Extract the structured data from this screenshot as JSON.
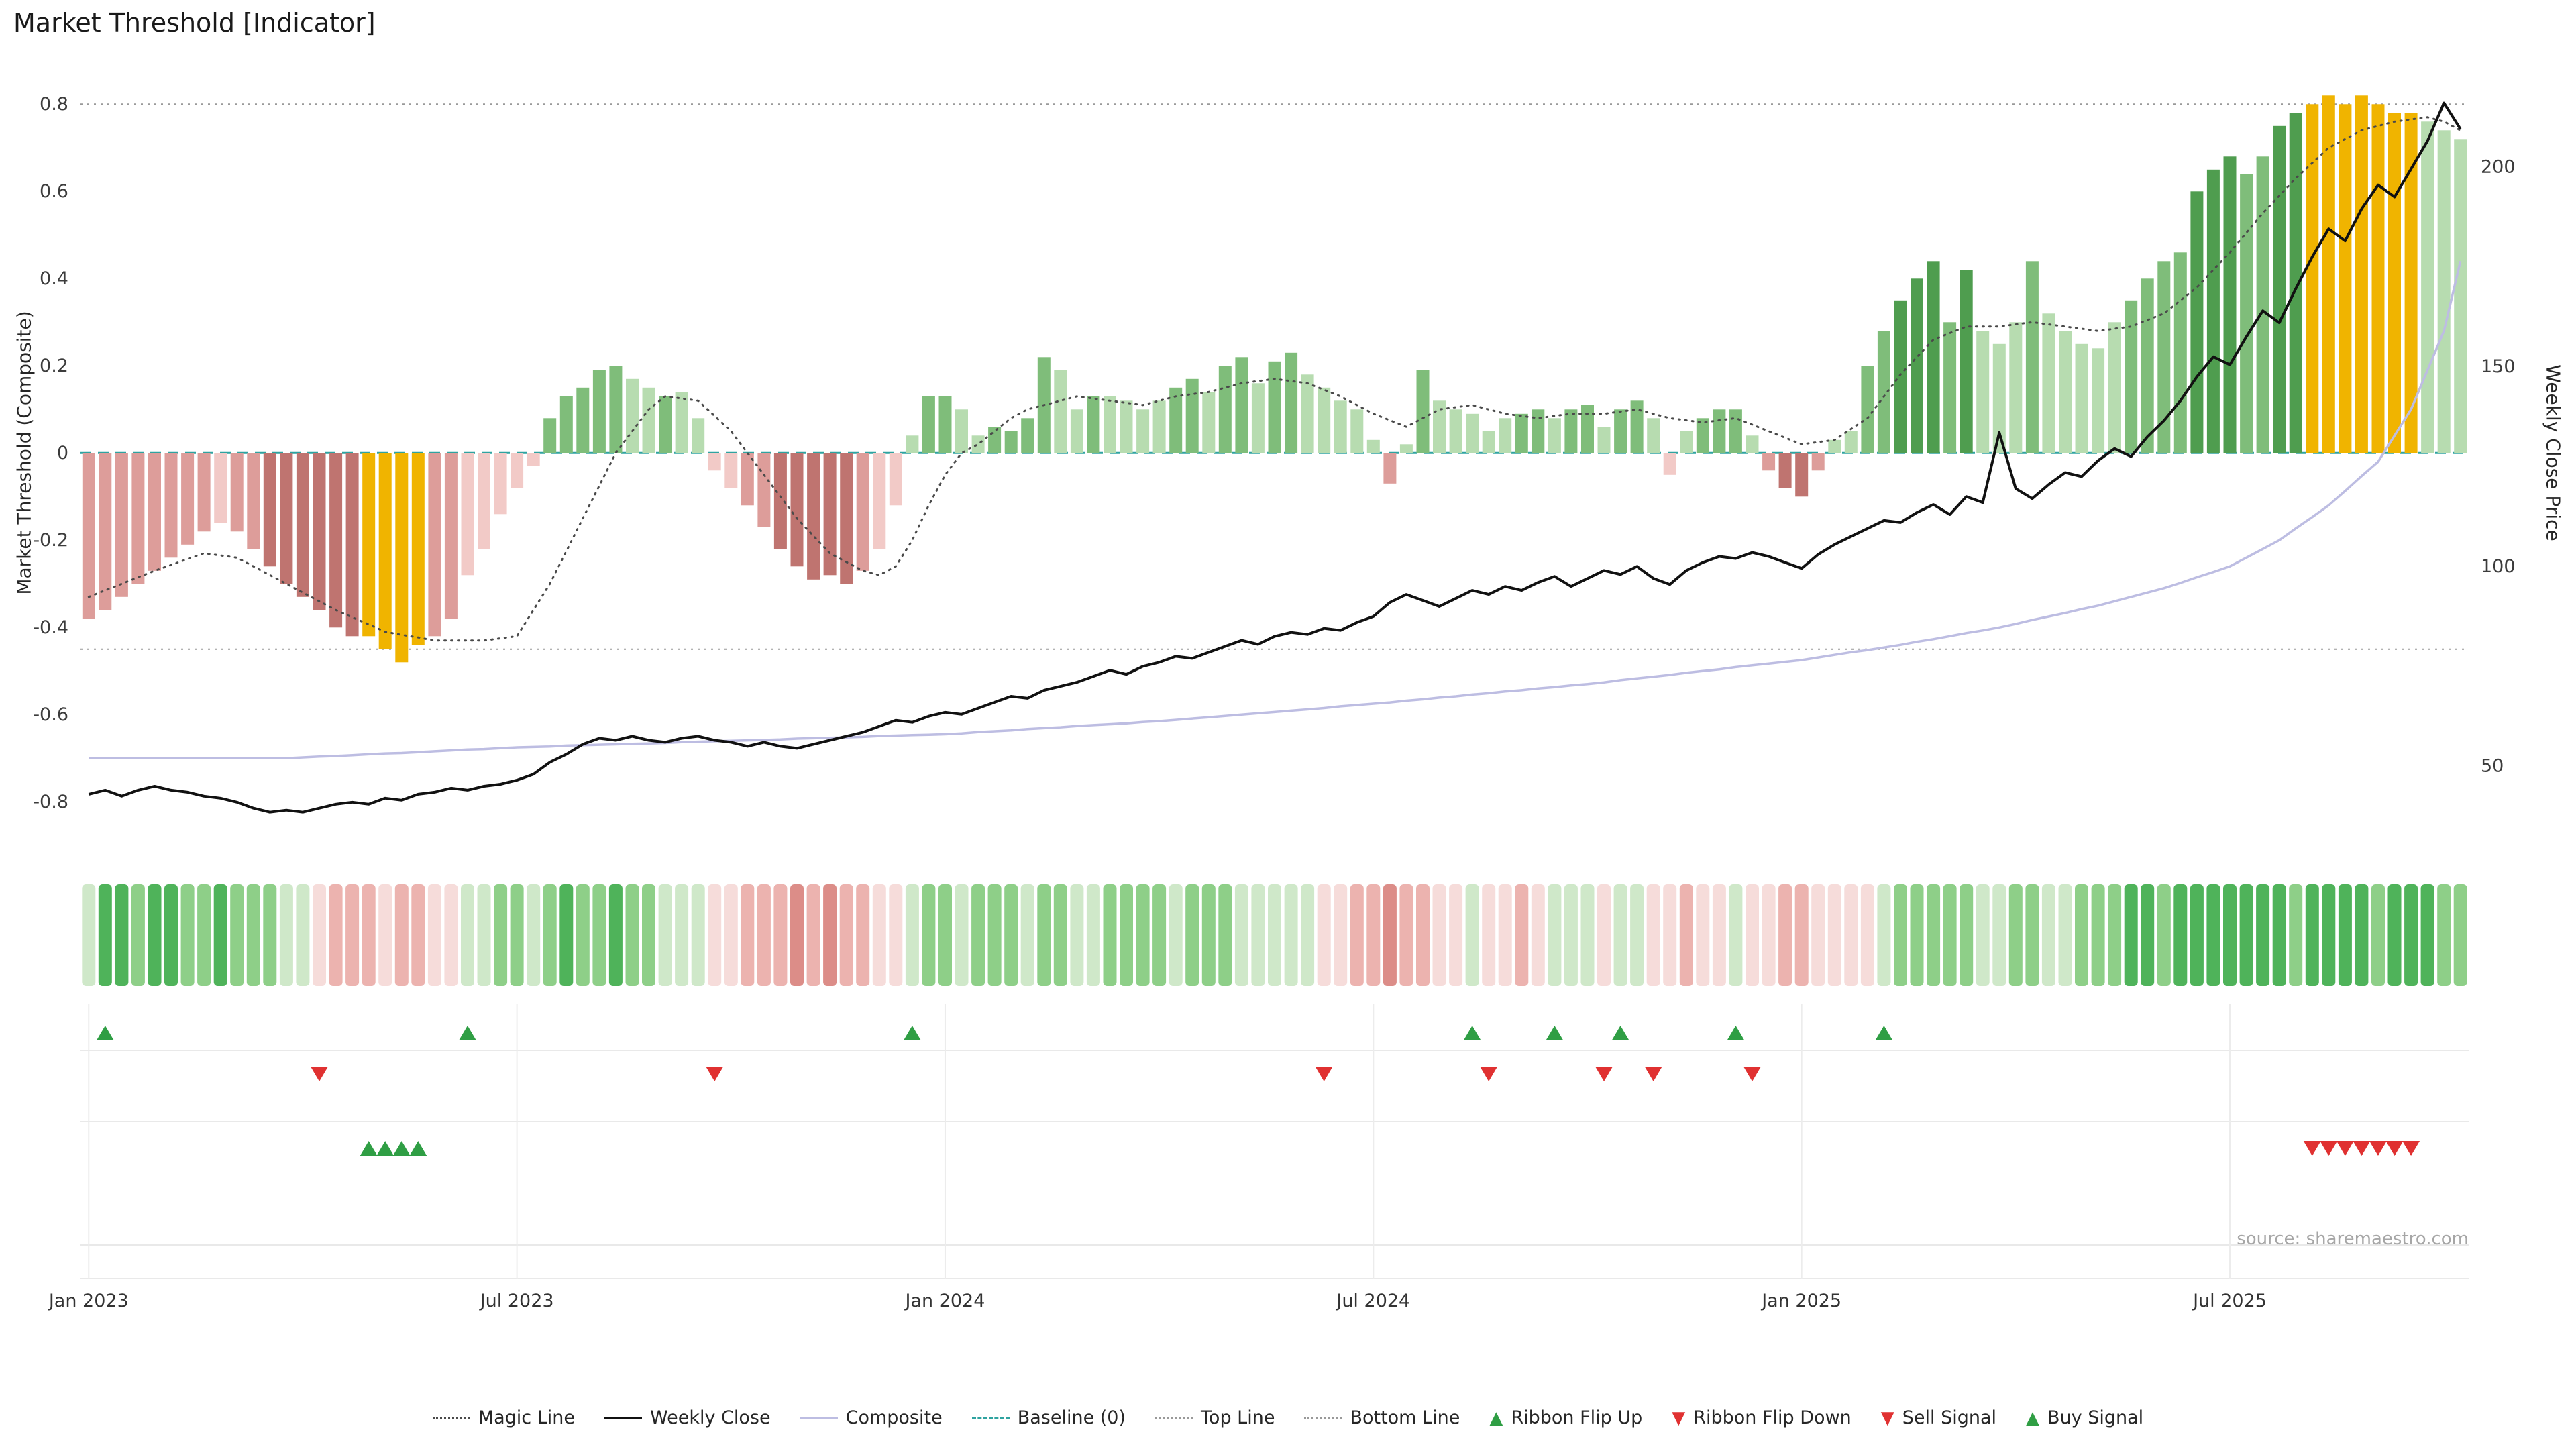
{
  "title": "Market Threshold [Indicator]",
  "source": "source: sharemaestro.com",
  "colors": {
    "weekly_close": "#111111",
    "composite_line": "#bdbde2",
    "magic_line": "#4a4a4a",
    "baseline": "#2fa3a0",
    "guide": "#999999",
    "flip_up": "#2f9e44",
    "flip_down": "#e03131",
    "buy": "#2f9e44",
    "sell": "#e03131",
    "grid": "#ececec",
    "tick_text": "#3c3c3c",
    "bar_palette": {
      "g1": "#b7dcb0",
      "g2": "#7fbd7a",
      "g3": "#4f9d4f",
      "r1": "#f2cac7",
      "r2": "#dd9d9a",
      "r3": "#bf7470",
      "gold": "#f0b400"
    },
    "ribbon_palette": {
      "1": "#cfe8c9",
      "2": "#8ecf88",
      "3": "#4fb35a",
      "-1": "#f6dcda",
      "-2": "#ecb3af",
      "-3": "#dc8d88"
    }
  },
  "legend": {
    "items": [
      {
        "label": "Magic Line",
        "type": "line",
        "style": "dotted",
        "color": "magic_line"
      },
      {
        "label": "Weekly Close",
        "type": "line",
        "style": "solid",
        "color": "weekly_close"
      },
      {
        "label": "Composite",
        "type": "line",
        "style": "solid",
        "color": "composite_line"
      },
      {
        "label": "Baseline (0)",
        "type": "line",
        "style": "dashed",
        "color": "baseline"
      },
      {
        "label": "Top Line",
        "type": "line",
        "style": "dotted",
        "color": "guide"
      },
      {
        "label": "Bottom Line",
        "type": "line",
        "style": "dotted",
        "color": "guide"
      },
      {
        "label": "Ribbon Flip Up",
        "type": "triangle-up",
        "color": "flip_up"
      },
      {
        "label": "Ribbon Flip Down",
        "type": "triangle-down",
        "color": "flip_down"
      },
      {
        "label": "Sell Signal",
        "type": "triangle-down",
        "color": "sell"
      },
      {
        "label": "Buy Signal",
        "type": "triangle-up",
        "color": "buy"
      }
    ]
  },
  "chart_data": {
    "type": "combo-bar-line-ribbon-signals",
    "n_weeks": 145,
    "x_ticks": [
      {
        "week": 0,
        "label": "Jan 2023"
      },
      {
        "week": 26,
        "label": "Jul 2023"
      },
      {
        "week": 52,
        "label": "Jan 2024"
      },
      {
        "week": 78,
        "label": "Jul 2024"
      },
      {
        "week": 104,
        "label": "Jan 2025"
      },
      {
        "week": 130,
        "label": "Jul 2025"
      }
    ],
    "ylabel_left": "Market Threshold (Composite)",
    "ylabel_right": "Weekly Close Price",
    "ylim_left": [
      -0.918,
      0.885
    ],
    "ylim_right": [
      28.2,
      225
    ],
    "yticks_left": [
      {
        "v": 0.8,
        "label": "0.8"
      },
      {
        "v": 0.6,
        "label": "0.6"
      },
      {
        "v": 0.4,
        "label": "0.4"
      },
      {
        "v": 0.2,
        "label": "0.2"
      },
      {
        "v": 0,
        "label": "0"
      },
      {
        "v": -0.2,
        "label": "-0.2"
      },
      {
        "v": -0.4,
        "label": "-0.4"
      },
      {
        "v": -0.6,
        "label": "-0.6"
      },
      {
        "v": -0.8,
        "label": "-0.8"
      }
    ],
    "yticks_right": [
      {
        "p": 200,
        "label": "200"
      },
      {
        "p": 150,
        "label": "150"
      },
      {
        "p": 100,
        "label": "100"
      },
      {
        "p": 50,
        "label": "50"
      }
    ],
    "top_line": 0.8,
    "bottom_line": -0.45,
    "baseline": 0,
    "bars": {
      "values": [
        -0.38,
        -0.36,
        -0.33,
        -0.3,
        -0.27,
        -0.24,
        -0.21,
        -0.18,
        -0.16,
        -0.18,
        -0.22,
        -0.26,
        -0.3,
        -0.33,
        -0.36,
        -0.4,
        -0.42,
        -0.42,
        -0.45,
        -0.48,
        -0.44,
        -0.42,
        -0.38,
        -0.28,
        -0.22,
        -0.14,
        -0.08,
        -0.03,
        0.08,
        0.13,
        0.15,
        0.19,
        0.2,
        0.17,
        0.15,
        0.13,
        0.14,
        0.08,
        -0.04,
        -0.08,
        -0.12,
        -0.17,
        -0.22,
        -0.26,
        -0.29,
        -0.28,
        -0.3,
        -0.27,
        -0.22,
        -0.12,
        0.04,
        0.13,
        0.13,
        0.1,
        0.04,
        0.06,
        0.05,
        0.08,
        0.22,
        0.19,
        0.1,
        0.13,
        0.13,
        0.12,
        0.1,
        0.12,
        0.15,
        0.17,
        0.14,
        0.2,
        0.22,
        0.16,
        0.21,
        0.23,
        0.18,
        0.15,
        0.12,
        0.1,
        0.03,
        -0.07,
        0.02,
        0.19,
        0.12,
        0.1,
        0.09,
        0.05,
        0.08,
        0.09,
        0.1,
        0.08,
        0.1,
        0.11,
        0.06,
        0.1,
        0.12,
        0.08,
        -0.05,
        0.05,
        0.08,
        0.1,
        0.1,
        0.04,
        -0.04,
        -0.08,
        -0.1,
        -0.04,
        0.03,
        0.05,
        0.2,
        0.28,
        0.35,
        0.4,
        0.44,
        0.3,
        0.42,
        0.28,
        0.25,
        0.3,
        0.44,
        0.32,
        0.28,
        0.25,
        0.24,
        0.3,
        0.35,
        0.4,
        0.44,
        0.46,
        0.6,
        0.65,
        0.68,
        0.64,
        0.68,
        0.75,
        0.78,
        0.8,
        0.82,
        0.8,
        0.82,
        0.8,
        0.78,
        0.78,
        0.76,
        0.74,
        0.72
      ],
      "colors": [
        "r2",
        "r2",
        "r2",
        "r2",
        "r2",
        "r2",
        "r2",
        "r2",
        "r1",
        "r2",
        "r2",
        "r3",
        "r3",
        "r3",
        "r3",
        "r3",
        "r3",
        "gold",
        "gold",
        "gold",
        "gold",
        "r2",
        "r2",
        "r1",
        "r1",
        "r1",
        "r1",
        "r1",
        "g2",
        "g2",
        "g2",
        "g2",
        "g2",
        "g1",
        "g1",
        "g2",
        "g1",
        "g1",
        "r1",
        "r1",
        "r2",
        "r2",
        "r3",
        "r3",
        "r3",
        "r3",
        "r3",
        "r2",
        "r1",
        "r1",
        "g1",
        "g2",
        "g2",
        "g1",
        "g1",
        "g2",
        "g2",
        "g2",
        "g2",
        "g1",
        "g1",
        "g2",
        "g1",
        "g1",
        "g1",
        "g1",
        "g2",
        "g2",
        "g1",
        "g2",
        "g2",
        "g1",
        "g2",
        "g2",
        "g1",
        "g1",
        "g1",
        "g1",
        "g1",
        "r2",
        "g1",
        "g2",
        "g1",
        "g1",
        "g1",
        "g1",
        "g1",
        "g2",
        "g2",
        "g1",
        "g2",
        "g2",
        "g1",
        "g2",
        "g2",
        "g1",
        "r1",
        "g1",
        "g2",
        "g2",
        "g2",
        "g1",
        "r2",
        "r3",
        "r3",
        "r2",
        "g1",
        "g1",
        "g2",
        "g2",
        "g3",
        "g3",
        "g3",
        "g2",
        "g3",
        "g1",
        "g1",
        "g1",
        "g2",
        "g1",
        "g1",
        "g1",
        "g1",
        "g1",
        "g2",
        "g2",
        "g2",
        "g2",
        "g3",
        "g3",
        "g3",
        "g2",
        "g2",
        "g3",
        "g3",
        "gold",
        "gold",
        "gold",
        "gold",
        "gold",
        "gold",
        "gold",
        "g1",
        "g1",
        "g1"
      ]
    },
    "weekly_close": [
      43,
      44,
      42.5,
      44,
      45,
      44,
      43.5,
      42.5,
      42,
      41,
      39.5,
      38.5,
      39,
      38.5,
      39.5,
      40.5,
      41,
      40.5,
      42,
      41.5,
      43,
      43.5,
      44.5,
      44,
      45,
      45.5,
      46.5,
      48,
      51,
      53,
      55.5,
      57,
      56.5,
      57.5,
      56.5,
      56,
      57,
      57.5,
      56.5,
      56,
      55,
      56,
      55,
      54.5,
      55.5,
      56.5,
      57.5,
      58.5,
      60,
      61.5,
      61,
      62.5,
      63.5,
      63,
      64.5,
      66,
      67.5,
      67,
      69,
      70,
      71,
      72.5,
      74,
      73,
      75,
      76,
      77.5,
      77,
      78.5,
      80,
      81.5,
      80.5,
      82.5,
      83.5,
      83,
      84.5,
      84,
      86,
      87.5,
      91,
      93,
      91.5,
      90,
      92,
      94,
      93,
      95,
      94,
      96,
      97.5,
      95,
      97,
      99,
      98,
      100,
      97,
      95.5,
      99,
      101,
      102.5,
      102,
      103.5,
      102.5,
      101,
      99.5,
      103,
      105.5,
      107.5,
      109.5,
      111.5,
      111,
      113.5,
      115.5,
      113,
      117.5,
      116,
      133.5,
      119.5,
      117,
      120.5,
      123.5,
      122.5,
      126.5,
      129.5,
      127.5,
      132.5,
      136.5,
      141.5,
      147.5,
      152.5,
      150.5,
      157.5,
      164,
      161,
      169.5,
      177.5,
      184.5,
      181.5,
      189.5,
      195.5,
      192.5,
      199.5,
      206.5,
      216,
      209.5
    ],
    "composite_line": [
      -0.7,
      -0.7,
      -0.7,
      -0.7,
      -0.7,
      -0.7,
      -0.7,
      -0.7,
      -0.7,
      -0.7,
      -0.7,
      -0.7,
      -0.7,
      -0.698,
      -0.696,
      -0.695,
      -0.693,
      -0.691,
      -0.689,
      -0.688,
      -0.686,
      -0.684,
      -0.682,
      -0.68,
      -0.679,
      -0.677,
      -0.675,
      -0.674,
      -0.673,
      -0.671,
      -0.67,
      -0.669,
      -0.668,
      -0.667,
      -0.666,
      -0.665,
      -0.663,
      -0.662,
      -0.661,
      -0.66,
      -0.659,
      -0.658,
      -0.657,
      -0.655,
      -0.654,
      -0.653,
      -0.652,
      -0.651,
      -0.649,
      -0.648,
      -0.647,
      -0.646,
      -0.645,
      -0.643,
      -0.64,
      -0.638,
      -0.636,
      -0.633,
      -0.631,
      -0.629,
      -0.626,
      -0.624,
      -0.622,
      -0.62,
      -0.617,
      -0.615,
      -0.612,
      -0.609,
      -0.606,
      -0.603,
      -0.6,
      -0.597,
      -0.594,
      -0.591,
      -0.588,
      -0.585,
      -0.581,
      -0.578,
      -0.575,
      -0.572,
      -0.568,
      -0.565,
      -0.561,
      -0.558,
      -0.554,
      -0.551,
      -0.547,
      -0.544,
      -0.54,
      -0.537,
      -0.533,
      -0.53,
      -0.526,
      -0.521,
      -0.517,
      -0.513,
      -0.509,
      -0.504,
      -0.5,
      -0.496,
      -0.491,
      -0.487,
      -0.483,
      -0.479,
      -0.475,
      -0.469,
      -0.463,
      -0.457,
      -0.452,
      -0.446,
      -0.44,
      -0.433,
      -0.427,
      -0.42,
      -0.413,
      -0.407,
      -0.4,
      -0.392,
      -0.383,
      -0.375,
      -0.367,
      -0.358,
      -0.35,
      -0.34,
      -0.33,
      -0.32,
      -0.31,
      -0.298,
      -0.285,
      -0.273,
      -0.26,
      -0.24,
      -0.22,
      -0.2,
      -0.173,
      -0.147,
      -0.12,
      -0.087,
      -0.053,
      -0.02,
      0.04,
      0.1,
      0.19,
      0.28,
      0.44
    ],
    "magic_line": [
      -0.33,
      -0.315,
      -0.3,
      -0.285,
      -0.27,
      -0.257,
      -0.243,
      -0.23,
      -0.235,
      -0.24,
      -0.26,
      -0.28,
      -0.3,
      -0.32,
      -0.34,
      -0.36,
      -0.377,
      -0.393,
      -0.41,
      -0.417,
      -0.423,
      -0.43,
      -0.43,
      -0.43,
      -0.43,
      -0.425,
      -0.42,
      -0.36,
      -0.3,
      -0.225,
      -0.15,
      -0.075,
      0.0,
      0.05,
      0.1,
      0.13,
      0.125,
      0.12,
      0.085,
      0.05,
      0.0,
      -0.05,
      -0.1,
      -0.15,
      -0.19,
      -0.23,
      -0.25,
      -0.27,
      -0.28,
      -0.26,
      -0.2,
      -0.12,
      -0.05,
      0.0,
      0.02,
      0.05,
      0.08,
      0.1,
      0.11,
      0.12,
      0.13,
      0.125,
      0.12,
      0.115,
      0.11,
      0.12,
      0.13,
      0.135,
      0.14,
      0.15,
      0.16,
      0.165,
      0.17,
      0.165,
      0.16,
      0.145,
      0.13,
      0.11,
      0.09,
      0.075,
      0.06,
      0.08,
      0.1,
      0.105,
      0.11,
      0.1,
      0.09,
      0.085,
      0.08,
      0.085,
      0.09,
      0.09,
      0.09,
      0.095,
      0.1,
      0.09,
      0.08,
      0.075,
      0.07,
      0.075,
      0.08,
      0.065,
      0.05,
      0.035,
      0.02,
      0.025,
      0.03,
      0.055,
      0.08,
      0.13,
      0.18,
      0.22,
      0.26,
      0.275,
      0.29,
      0.29,
      0.29,
      0.295,
      0.3,
      0.295,
      0.29,
      0.285,
      0.28,
      0.285,
      0.29,
      0.305,
      0.32,
      0.35,
      0.38,
      0.42,
      0.46,
      0.505,
      0.55,
      0.59,
      0.63,
      0.665,
      0.7,
      0.72,
      0.74,
      0.75,
      0.76,
      0.765,
      0.77,
      0.76,
      0.74
    ],
    "ribbon": [
      1,
      3,
      3,
      2,
      3,
      3,
      2,
      2,
      3,
      2,
      2,
      2,
      1,
      1,
      -1,
      -2,
      -2,
      -2,
      -1,
      -2,
      -2,
      -1,
      -1,
      1,
      1,
      2,
      2,
      1,
      2,
      3,
      2,
      2,
      3,
      2,
      2,
      1,
      1,
      1,
      -1,
      -1,
      -2,
      -2,
      -2,
      -3,
      -2,
      -3,
      -2,
      -2,
      -1,
      -1,
      1,
      2,
      2,
      1,
      2,
      2,
      2,
      1,
      2,
      2,
      1,
      1,
      2,
      2,
      2,
      2,
      1,
      2,
      2,
      2,
      1,
      1,
      1,
      1,
      1,
      -1,
      -1,
      -2,
      -2,
      -3,
      -2,
      -2,
      -1,
      -1,
      1,
      -1,
      -1,
      -2,
      -1,
      1,
      1,
      1,
      -1,
      1,
      1,
      -1,
      -1,
      -2,
      -1,
      -1,
      1,
      -1,
      -1,
      -2,
      -2,
      -1,
      -1,
      -1,
      -1,
      1,
      2,
      2,
      2,
      2,
      2,
      1,
      1,
      2,
      2,
      1,
      1,
      2,
      2,
      2,
      3,
      3,
      2,
      3,
      3,
      3,
      3,
      3,
      3,
      3,
      2,
      3,
      3,
      3,
      3,
      2,
      3,
      3,
      3,
      2,
      2
    ],
    "signals": {
      "ribbon_flip_up_weeks": [
        1,
        23,
        50,
        84,
        89,
        93,
        100,
        109
      ],
      "ribbon_flip_down_weeks": [
        14,
        38,
        75,
        85,
        92,
        95,
        101
      ],
      "buy_signal_weeks": [
        17,
        18,
        19,
        20
      ],
      "sell_signal_weeks": [
        135,
        136,
        137,
        138,
        139,
        140,
        141
      ]
    }
  }
}
